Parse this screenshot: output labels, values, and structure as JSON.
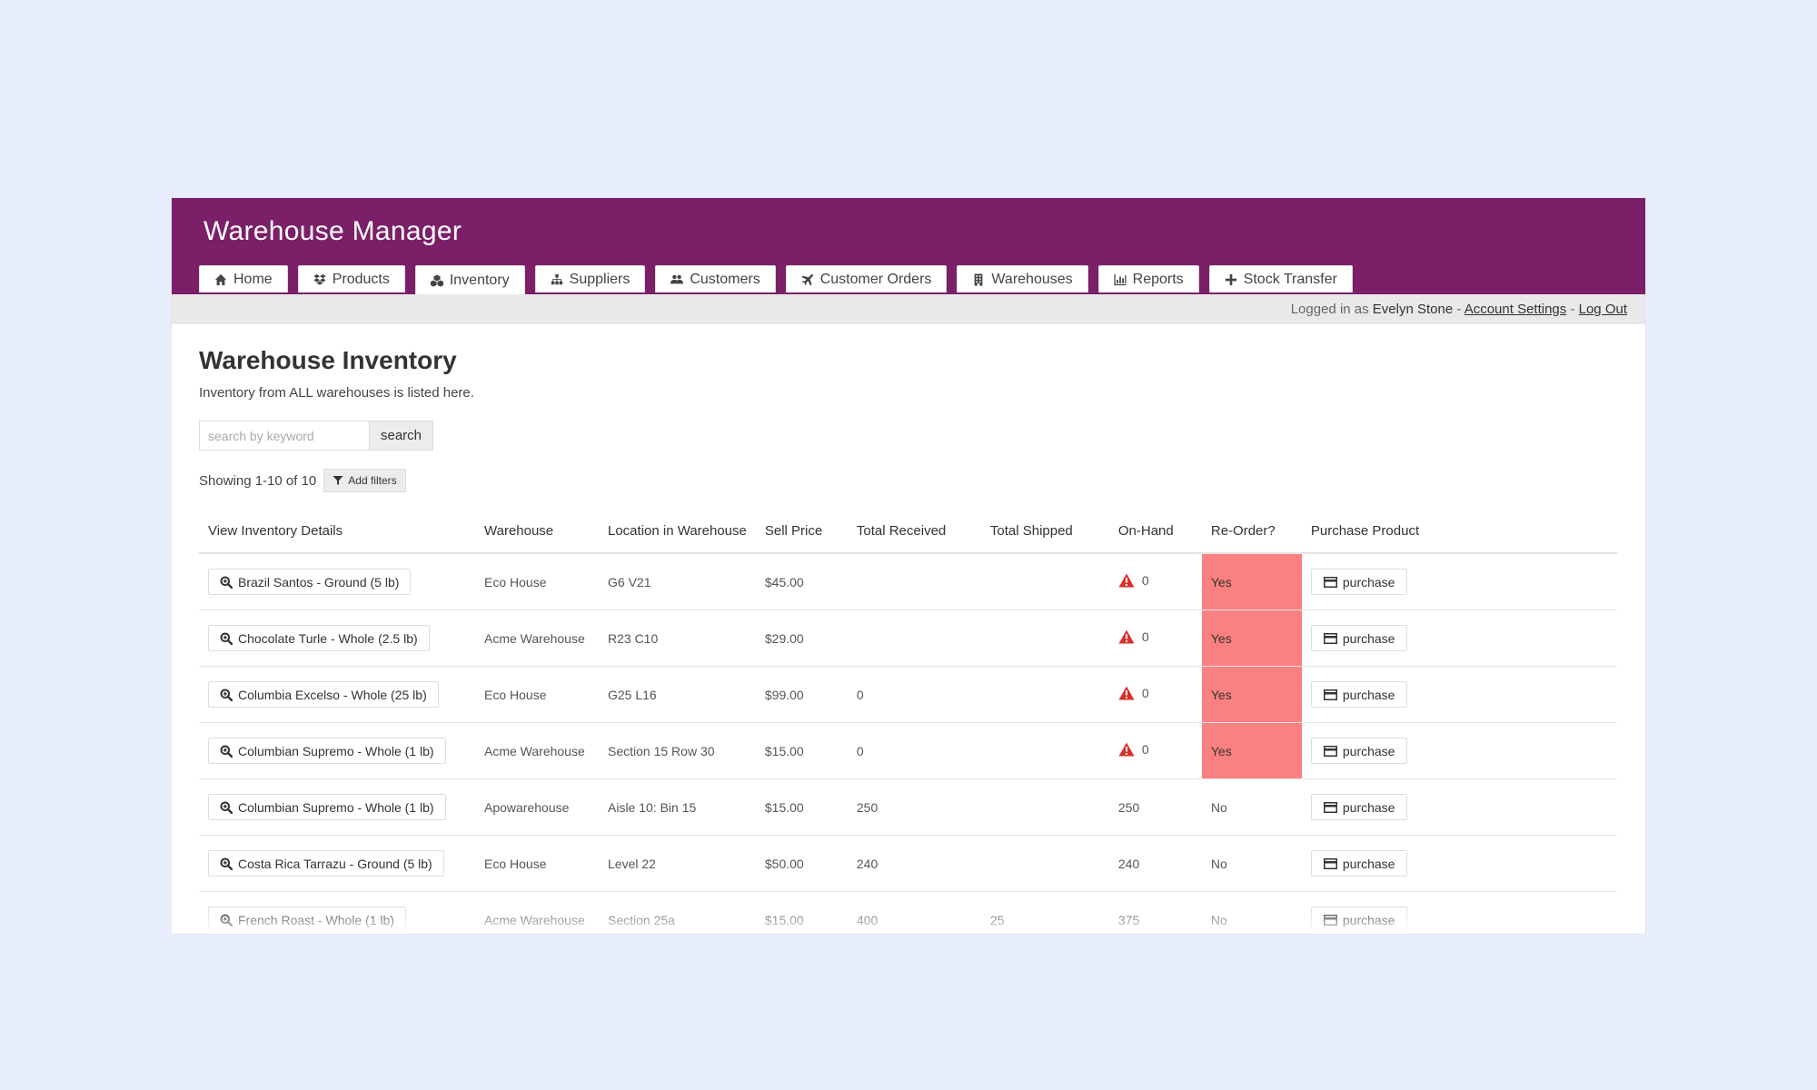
{
  "app": {
    "title": "Warehouse Manager"
  },
  "nav": {
    "tabs": [
      {
        "label": "Home",
        "icon": "home-icon"
      },
      {
        "label": "Products",
        "icon": "dropbox-icon"
      },
      {
        "label": "Inventory",
        "icon": "cubes-icon"
      },
      {
        "label": "Suppliers",
        "icon": "sitemap-icon"
      },
      {
        "label": "Customers",
        "icon": "users-icon"
      },
      {
        "label": "Customer Orders",
        "icon": "plane-icon"
      },
      {
        "label": "Warehouses",
        "icon": "building-icon"
      },
      {
        "label": "Reports",
        "icon": "bar-chart-icon"
      },
      {
        "label": "Stock Transfer",
        "icon": "plus-icon"
      }
    ],
    "active_tab": "Inventory"
  },
  "user": {
    "prefix": "Logged in as",
    "name": "Evelyn Stone",
    "sep1": "-",
    "account_settings": "Account Settings",
    "sep2": "-",
    "logout": "Log Out"
  },
  "page": {
    "title": "Warehouse Inventory",
    "subtitle": "Inventory from ALL warehouses is listed here."
  },
  "search": {
    "placeholder": "search by keyword",
    "button": "search"
  },
  "results": {
    "showing": "Showing 1-10 of 10",
    "add_filters": "Add filters"
  },
  "table": {
    "headers": [
      "View Inventory Details",
      "Warehouse",
      "Location in Warehouse",
      "Sell Price",
      "Total Received",
      "Total Shipped",
      "On-Hand",
      "Re-Order?",
      "Purchase Product"
    ],
    "purchase_label": "purchase",
    "rows": [
      {
        "product": "Brazil Santos - Ground (5 lb)",
        "warehouse": "Eco House",
        "location": "G6 V21",
        "price": "$45.00",
        "received": "",
        "shipped": "",
        "onhand": "0",
        "warn": true,
        "reorder": "Yes"
      },
      {
        "product": "Chocolate Turle - Whole (2.5 lb)",
        "warehouse": "Acme Warehouse",
        "location": "R23 C10",
        "price": "$29.00",
        "received": "",
        "shipped": "",
        "onhand": "0",
        "warn": true,
        "reorder": "Yes"
      },
      {
        "product": "Columbia Excelso - Whole (25 lb)",
        "warehouse": "Eco House",
        "location": "G25 L16",
        "price": "$99.00",
        "received": "0",
        "shipped": "",
        "onhand": "0",
        "warn": true,
        "reorder": "Yes"
      },
      {
        "product": "Columbian Supremo - Whole (1 lb)",
        "warehouse": "Acme Warehouse",
        "location": "Section 15 Row 30",
        "price": "$15.00",
        "received": "0",
        "shipped": "",
        "onhand": "0",
        "warn": true,
        "reorder": "Yes"
      },
      {
        "product": "Columbian Supremo - Whole (1 lb)",
        "warehouse": "Apowarehouse",
        "location": "Aisle 10: Bin 15",
        "price": "$15.00",
        "received": "250",
        "shipped": "",
        "onhand": "250",
        "warn": false,
        "reorder": "No"
      },
      {
        "product": "Costa Rica Tarrazu - Ground (5 lb)",
        "warehouse": "Eco House",
        "location": "Level 22",
        "price": "$50.00",
        "received": "240",
        "shipped": "",
        "onhand": "240",
        "warn": false,
        "reorder": "No"
      },
      {
        "product": "French Roast - Whole (1 lb)",
        "warehouse": "Acme Warehouse",
        "location": "Section 25a",
        "price": "$15.00",
        "received": "400",
        "shipped": "25",
        "onhand": "375",
        "warn": false,
        "reorder": "No"
      }
    ]
  },
  "colors": {
    "header_bg": "#7b2068",
    "reorder_alert": "#fb8080",
    "warning_icon": "#d9302c",
    "page_bg": "#e8eefc"
  }
}
